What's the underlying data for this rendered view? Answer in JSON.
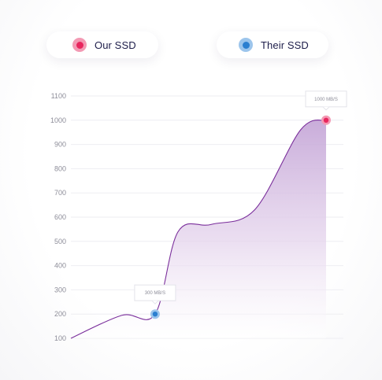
{
  "legend": {
    "items": [
      {
        "label": "Our SSD",
        "color": "#e8265e",
        "halo": "#f39ab4"
      },
      {
        "label": "Their SSD",
        "color": "#2b7fd0",
        "halo": "#9cc5ec"
      }
    ]
  },
  "chart_data": {
    "type": "area",
    "title": "",
    "xlabel": "",
    "ylabel": "",
    "ylim": [
      100,
      1100
    ],
    "yticks": [
      100,
      200,
      300,
      400,
      500,
      600,
      700,
      800,
      900,
      1000,
      1100
    ],
    "grid": true,
    "legend_position": "top",
    "series": [
      {
        "values_curve": [
          [
            0,
            100
          ],
          [
            0.2,
            195
          ],
          [
            0.33,
            200
          ],
          [
            0.42,
            540
          ],
          [
            0.55,
            570
          ],
          [
            0.72,
            630
          ],
          [
            0.9,
            960
          ],
          [
            1.0,
            1000
          ]
        ]
      }
    ],
    "annotations": [
      {
        "label": "300 MB/S",
        "series": "Their SSD",
        "x": 0.33,
        "y": 200
      },
      {
        "label": "1000 MB/S",
        "series": "Our SSD",
        "x": 1.0,
        "y": 1000
      }
    ],
    "colors": {
      "line": "#7a2e9b",
      "fill_top": "#c9aad9",
      "grid": "#eeeef2"
    }
  }
}
